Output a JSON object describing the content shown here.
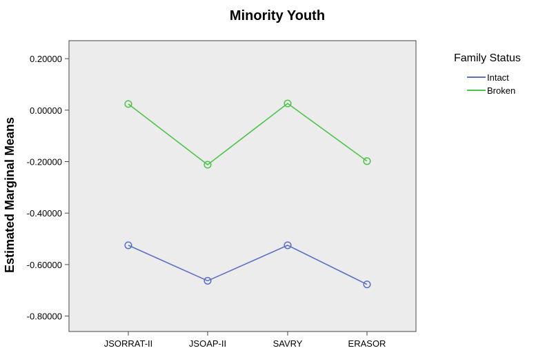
{
  "chart_data": {
    "type": "line",
    "title": "Minority Youth",
    "xlabel": "",
    "ylabel": "Estimated Marginal Means",
    "categories": [
      "JSORRAT-II",
      "JSOAP-II",
      "SAVRY",
      "ERASOR"
    ],
    "yticks": [
      "0.20000",
      "0.00000",
      "-0.20000",
      "-0.40000",
      "-0.60000",
      "-0.80000"
    ],
    "ytick_values": [
      0.2,
      0.0,
      -0.2,
      -0.4,
      -0.6,
      -0.8
    ],
    "ylim": [
      -0.86,
      0.27
    ],
    "grid": false,
    "legend": {
      "title": "Family Status",
      "placement": "right"
    },
    "series": [
      {
        "name": "Intact",
        "color": "#5b6fc4",
        "values": [
          -0.525,
          -0.663,
          -0.525,
          -0.677
        ]
      },
      {
        "name": "Broken",
        "color": "#4cc44c",
        "values": [
          0.024,
          -0.212,
          0.026,
          -0.198
        ]
      }
    ],
    "background_color": "#ececec"
  }
}
